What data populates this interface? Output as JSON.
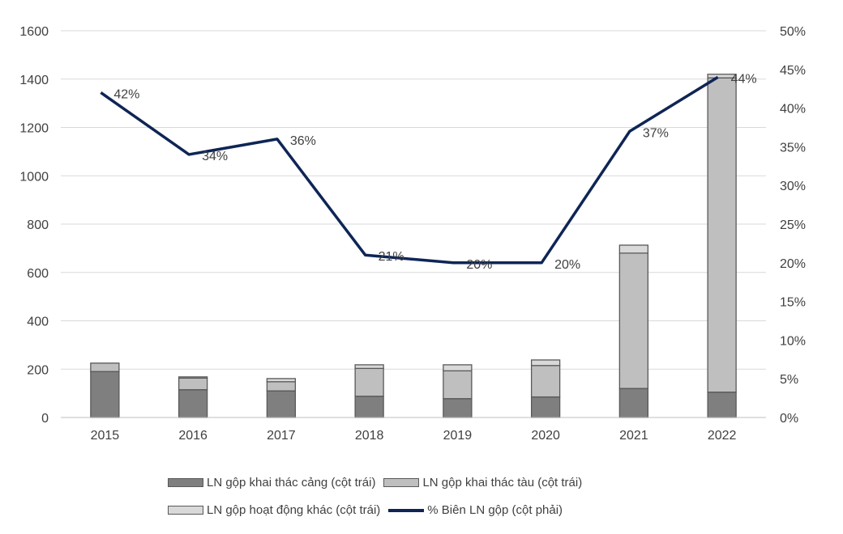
{
  "chart_data": {
    "type": "bar",
    "stacked": true,
    "categories": [
      "2015",
      "2016",
      "2017",
      "2018",
      "2019",
      "2020",
      "2021",
      "2022"
    ],
    "series": [
      {
        "name": "LN gộp khai thác cảng (cột trái)",
        "axis": "left",
        "color": "#7f7f7f",
        "values": [
          190,
          115,
          110,
          88,
          78,
          85,
          120,
          105
        ]
      },
      {
        "name": "LN gộp khai thác tàu (cột trái)",
        "axis": "left",
        "color": "#bfbfbf",
        "values": [
          35,
          48,
          38,
          115,
          115,
          130,
          560,
          1300
        ]
      },
      {
        "name": "LN gộp hoạt động khác (cột trái)",
        "axis": "left",
        "color": "#d9d9d9",
        "values": [
          0,
          5,
          13,
          15,
          25,
          23,
          33,
          15
        ]
      },
      {
        "name": "% Biên LN gộp (cột phải)",
        "axis": "right",
        "type": "line",
        "color": "#0e2555",
        "values": [
          42,
          34,
          36,
          21,
          20,
          20,
          37,
          44
        ],
        "labels": [
          "42%",
          "34%",
          "36%",
          "21%",
          "20%",
          "20%",
          "37%",
          "44%"
        ]
      }
    ],
    "y_left": {
      "min": 0,
      "max": 1600,
      "ticks": [
        "0",
        "200",
        "400",
        "600",
        "800",
        "1000",
        "1200",
        "1400",
        "1600"
      ]
    },
    "y_right": {
      "min": 0,
      "max": 50,
      "ticks": [
        "0%",
        "5%",
        "10%",
        "15%",
        "20%",
        "25%",
        "30%",
        "35%",
        "40%",
        "45%",
        "50%"
      ]
    },
    "grid": true,
    "legend_position": "bottom"
  },
  "legend": {
    "row1": [
      "LN gộp khai thác cảng (cột trái)",
      "LN gộp khai thác tàu (cột trái)"
    ],
    "row2": [
      "LN gộp hoạt động khác (cột trái)",
      "% Biên LN gộp (cột phải)"
    ]
  }
}
